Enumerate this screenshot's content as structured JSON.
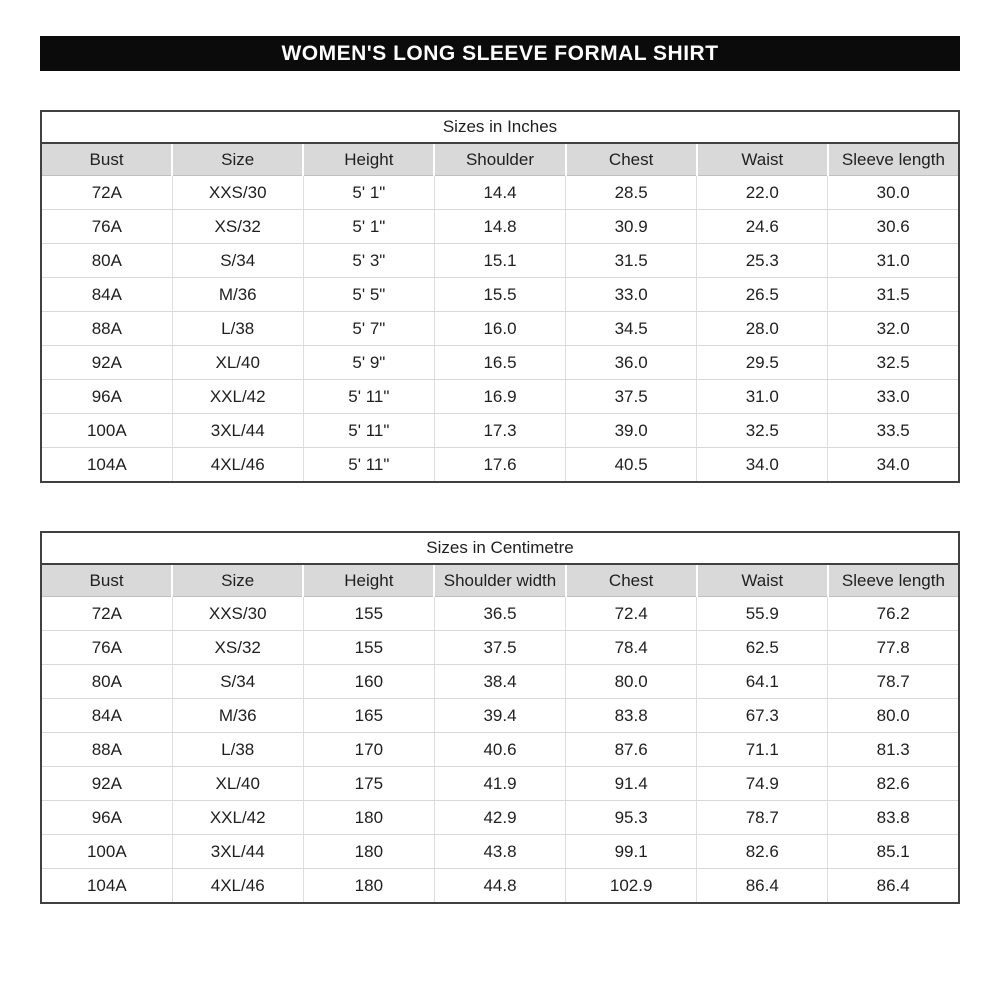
{
  "page_title": "WOMEN'S LONG SLEEVE FORMAL SHIRT",
  "colors": {
    "title_bar_bg": "#0b0b0b",
    "title_bar_text": "#ffffff",
    "header_row_bg": "#d9d9d9",
    "outer_border": "#404040",
    "grid_line": "#d9d9d9",
    "text": "#1f1f1f"
  },
  "tables": [
    {
      "title": "Sizes in Inches",
      "headers": [
        "Bust",
        "Size",
        "Height",
        "Shoulder",
        "Chest",
        "Waist",
        "Sleeve length"
      ],
      "rows": [
        [
          "72A",
          "XXS/30",
          "5' 1\"",
          "14.4",
          "28.5",
          "22.0",
          "30.0"
        ],
        [
          "76A",
          "XS/32",
          "5' 1\"",
          "14.8",
          "30.9",
          "24.6",
          "30.6"
        ],
        [
          "80A",
          "S/34",
          "5' 3\"",
          "15.1",
          "31.5",
          "25.3",
          "31.0"
        ],
        [
          "84A",
          "M/36",
          "5' 5\"",
          "15.5",
          "33.0",
          "26.5",
          "31.5"
        ],
        [
          "88A",
          "L/38",
          "5' 7\"",
          "16.0",
          "34.5",
          "28.0",
          "32.0"
        ],
        [
          "92A",
          "XL/40",
          "5' 9\"",
          "16.5",
          "36.0",
          "29.5",
          "32.5"
        ],
        [
          "96A",
          "XXL/42",
          "5' 11\"",
          "16.9",
          "37.5",
          "31.0",
          "33.0"
        ],
        [
          "100A",
          "3XL/44",
          "5' 11\"",
          "17.3",
          "39.0",
          "32.5",
          "33.5"
        ],
        [
          "104A",
          "4XL/46",
          "5' 11\"",
          "17.6",
          "40.5",
          "34.0",
          "34.0"
        ]
      ]
    },
    {
      "title": "Sizes in Centimetre",
      "headers": [
        "Bust",
        "Size",
        "Height",
        "Shoulder width",
        "Chest",
        "Waist",
        "Sleeve length"
      ],
      "rows": [
        [
          "72A",
          "XXS/30",
          "155",
          "36.5",
          "72.4",
          "55.9",
          "76.2"
        ],
        [
          "76A",
          "XS/32",
          "155",
          "37.5",
          "78.4",
          "62.5",
          "77.8"
        ],
        [
          "80A",
          "S/34",
          "160",
          "38.4",
          "80.0",
          "64.1",
          "78.7"
        ],
        [
          "84A",
          "M/36",
          "165",
          "39.4",
          "83.8",
          "67.3",
          "80.0"
        ],
        [
          "88A",
          "L/38",
          "170",
          "40.6",
          "87.6",
          "71.1",
          "81.3"
        ],
        [
          "92A",
          "XL/40",
          "175",
          "41.9",
          "91.4",
          "74.9",
          "82.6"
        ],
        [
          "96A",
          "XXL/42",
          "180",
          "42.9",
          "95.3",
          "78.7",
          "83.8"
        ],
        [
          "100A",
          "3XL/44",
          "180",
          "43.8",
          "99.1",
          "82.6",
          "85.1"
        ],
        [
          "104A",
          "4XL/46",
          "180",
          "44.8",
          "102.9",
          "86.4",
          "86.4"
        ]
      ]
    }
  ]
}
